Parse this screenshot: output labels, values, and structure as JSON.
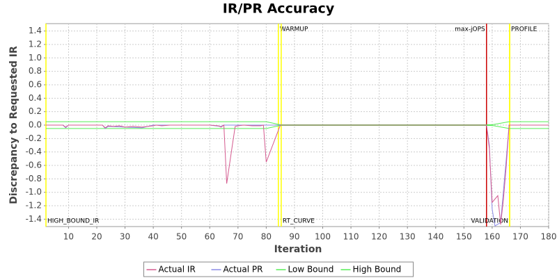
{
  "chart_data": {
    "type": "line",
    "title": "IR/PR Accuracy",
    "x_label": "Iteration",
    "y_label": "Discrepancy to Requested IR",
    "xlim": [
      2,
      180
    ],
    "ylim": [
      -1.51,
      1.51
    ],
    "xticks": [
      10,
      20,
      30,
      40,
      50,
      60,
      70,
      80,
      90,
      100,
      110,
      120,
      130,
      140,
      150,
      160,
      170,
      180
    ],
    "yticks": [
      {
        "value": -1.4,
        "label": "-1.4"
      },
      {
        "value": -1.2,
        "label": "-1.2"
      },
      {
        "value": -1,
        "label": "-1.0"
      },
      {
        "value": -0.8,
        "label": "-0.8"
      },
      {
        "value": -0.6,
        "label": "-0.6"
      },
      {
        "value": -0.4,
        "label": "-0.4"
      },
      {
        "value": -0.2,
        "label": "-0.2"
      },
      {
        "value": 0,
        "label": "0.0"
      },
      0.2,
      0.4,
      0.6,
      0.8,
      {
        "value": 1,
        "label": "1.0"
      },
      1.2,
      1.4
    ],
    "grid": true,
    "series": [
      {
        "name": "Actual IR",
        "color": "#d45a8f",
        "x": [
          2,
          8,
          9,
          10,
          15,
          20,
          22,
          23,
          24,
          26,
          28,
          30,
          33,
          36,
          38,
          40,
          41,
          43,
          46,
          50,
          55,
          60,
          63,
          64,
          65,
          66,
          68,
          69,
          70,
          72,
          75,
          78,
          79,
          80,
          85,
          100,
          120,
          140,
          157,
          158,
          159,
          160,
          162,
          163,
          164,
          165,
          166,
          167,
          170,
          175,
          180
        ],
        "values": [
          0,
          0,
          -0.03,
          0,
          0,
          0,
          0,
          -0.04,
          -0.01,
          -0.02,
          -0.01,
          -0.03,
          -0.02,
          -0.03,
          -0.02,
          -0.01,
          0,
          -0.01,
          0,
          0,
          0,
          0,
          -0.01,
          -0.03,
          0,
          -0.87,
          -0.3,
          -0.02,
          -0.01,
          0,
          -0.01,
          -0.01,
          0,
          -0.55,
          0,
          0,
          0,
          0,
          0,
          0,
          -0.35,
          -1.15,
          -1.05,
          -1.48,
          -1.1,
          -0.6,
          0,
          0,
          0,
          0,
          0
        ]
      },
      {
        "name": "Actual PR",
        "color": "#8a8ae6",
        "x": [
          2,
          8,
          9,
          10,
          20,
          22,
          23,
          24,
          30,
          36,
          40,
          50,
          60,
          64,
          65,
          85,
          100,
          140,
          158,
          159,
          160,
          161,
          163,
          165,
          166,
          170,
          180
        ],
        "values": [
          0,
          0,
          -0.04,
          0,
          0,
          0,
          -0.05,
          -0.02,
          -0.03,
          -0.04,
          0,
          0,
          0,
          -0.02,
          0,
          0,
          0,
          0,
          0,
          -0.3,
          -1.25,
          -1.5,
          -1.45,
          -0.5,
          0,
          0,
          0
        ]
      },
      {
        "name": "Low Bound",
        "color": "#55ee55",
        "x": [
          2,
          80,
          85,
          158,
          160,
          166,
          180
        ],
        "values": [
          -0.05,
          -0.05,
          -0.005,
          -0.005,
          -0.005,
          -0.05,
          -0.05
        ]
      },
      {
        "name": "High Bound",
        "color": "#55ee55",
        "x": [
          2,
          80,
          85,
          160,
          166,
          180
        ],
        "values": [
          0.05,
          0.05,
          0.005,
          0.005,
          0.05,
          0.05
        ]
      }
    ],
    "markers": [
      {
        "label": "HIGH_BOUND_IR",
        "x": 2,
        "color": "#ffff00",
        "position": "bottom",
        "side": "right"
      },
      {
        "label": "WARMUP",
        "x": 84.3,
        "color": "#ffff00",
        "position": "top",
        "side": "right"
      },
      {
        "label": "RT_CURVE",
        "x": 85.3,
        "color": "#ffff00",
        "position": "bottom",
        "side": "right"
      },
      {
        "label": "max-jOPS",
        "x": 158,
        "color": "#cc0000",
        "position": "top",
        "side": "left"
      },
      {
        "label": "VALIDATION",
        "x": 166.2,
        "color": "#ffff00",
        "position": "bottom",
        "side": "left"
      },
      {
        "label": "PROFILE",
        "x": 166.2,
        "color": "#ffff00",
        "position": "top",
        "side": "right"
      }
    ]
  }
}
